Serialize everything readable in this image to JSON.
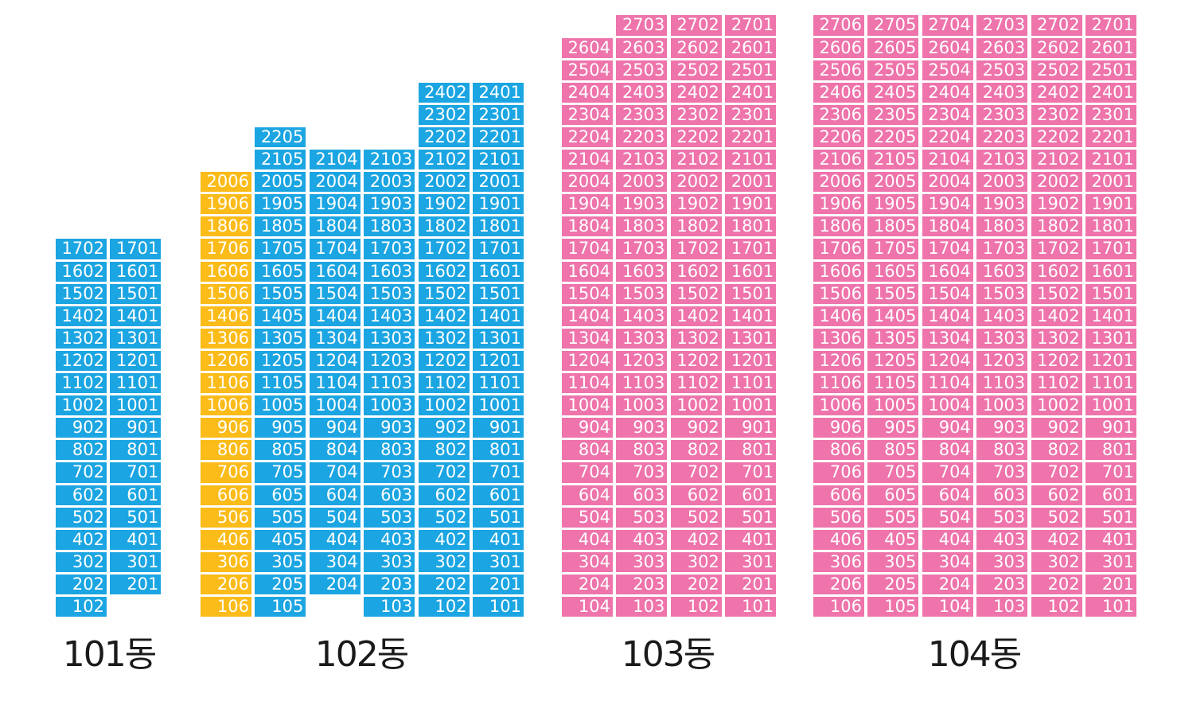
{
  "colors": {
    "blue": "#1ba5e2",
    "yellow": "#fbbb18",
    "pink": "#ee74ab",
    "text": "#ffffff",
    "label": "#1a1a1a"
  },
  "buildings": [
    {
      "label": "101동",
      "color": "blue",
      "columns": [
        {
          "top": 17,
          "bottom": 1,
          "unit": "02"
        },
        {
          "top": 17,
          "bottom": 2,
          "unit": "01"
        }
      ]
    },
    {
      "label": "102동",
      "color": "blue",
      "columns": [
        {
          "top": 20,
          "bottom": 1,
          "unit": "06",
          "color": "yellow"
        },
        {
          "top": 22,
          "bottom": 1,
          "unit": "05"
        },
        {
          "top": 21,
          "bottom": 2,
          "unit": "04"
        },
        {
          "top": 21,
          "bottom": 1,
          "unit": "03"
        },
        {
          "top": 24,
          "bottom": 1,
          "unit": "02"
        },
        {
          "top": 24,
          "bottom": 1,
          "unit": "01"
        }
      ]
    },
    {
      "label": "103동",
      "color": "pink",
      "columns": [
        {
          "top": 26,
          "bottom": 1,
          "unit": "04"
        },
        {
          "top": 27,
          "bottom": 1,
          "unit": "03"
        },
        {
          "top": 27,
          "bottom": 1,
          "unit": "02"
        },
        {
          "top": 27,
          "bottom": 1,
          "unit": "01"
        }
      ]
    },
    {
      "label": "104동",
      "color": "pink",
      "columns": [
        {
          "top": 27,
          "bottom": 1,
          "unit": "06"
        },
        {
          "top": 27,
          "bottom": 1,
          "unit": "05"
        },
        {
          "top": 27,
          "bottom": 1,
          "unit": "04"
        },
        {
          "top": 27,
          "bottom": 1,
          "unit": "03"
        },
        {
          "top": 27,
          "bottom": 1,
          "unit": "02"
        },
        {
          "top": 27,
          "bottom": 1,
          "unit": "01"
        }
      ]
    }
  ]
}
